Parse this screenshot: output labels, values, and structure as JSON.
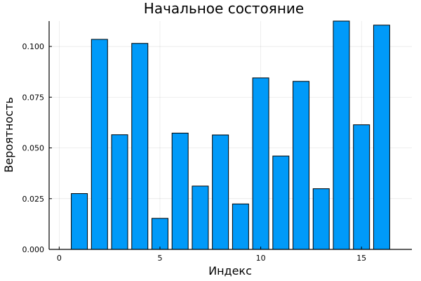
{
  "chart_data": {
    "type": "bar",
    "title": "Начальное состояние",
    "xlabel": "Индекс",
    "ylabel": "Вероятность",
    "x": [
      1,
      2,
      3,
      4,
      5,
      6,
      7,
      8,
      9,
      10,
      11,
      12,
      13,
      14,
      15,
      16
    ],
    "values": [
      0.0275,
      0.1035,
      0.0565,
      0.1015,
      0.0153,
      0.0573,
      0.0312,
      0.0564,
      0.0224,
      0.0845,
      0.046,
      0.0828,
      0.0299,
      0.1125,
      0.0614,
      0.1105
    ],
    "xlim": [
      -0.5,
      17.5
    ],
    "ylim": [
      0,
      0.1125
    ],
    "xticks": [
      0,
      5,
      10,
      15
    ],
    "xtick_labels": [
      "0",
      "5",
      "10",
      "15"
    ],
    "yticks": [
      0,
      0.025,
      0.05,
      0.075,
      0.1
    ],
    "ytick_labels": [
      "0.000",
      "0.025",
      "0.050",
      "0.075",
      "0.100"
    ],
    "bar_color": "#009AF9",
    "grid": true,
    "legend": false
  }
}
